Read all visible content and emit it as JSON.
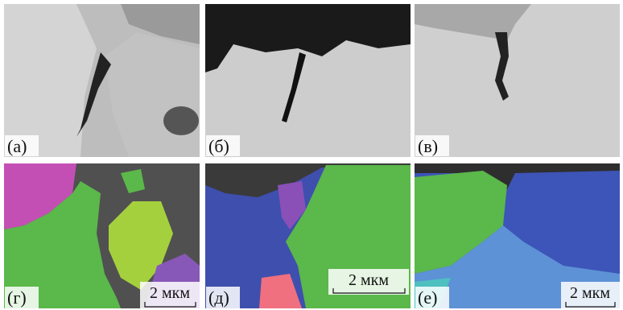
{
  "panels": [
    {
      "label": "(а)"
    },
    {
      "label": "(б)"
    },
    {
      "label": "(в)"
    },
    {
      "label": "(г)"
    },
    {
      "label": "(д)"
    },
    {
      "label": "(е)"
    }
  ],
  "scale_bars": [
    {
      "label": "2 мкм"
    },
    {
      "label": "2 мкм"
    },
    {
      "label": "2 мкм"
    }
  ]
}
